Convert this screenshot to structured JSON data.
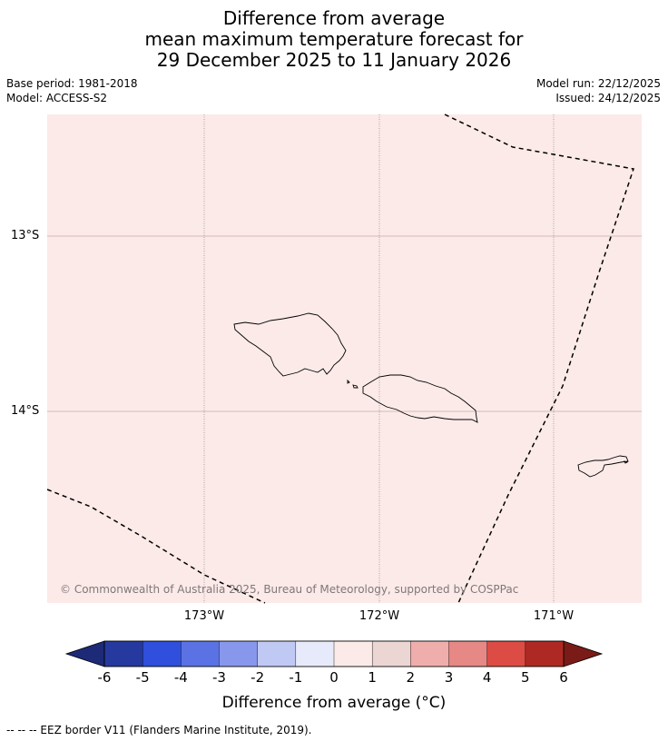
{
  "title": {
    "line1": "Difference from average",
    "line2": "mean maximum temperature forecast for",
    "line3": "29 December 2025 to 11 January 2026"
  },
  "meta": {
    "base_period": "Base period: 1981-2018",
    "model": "Model: ACCESS-S2",
    "model_run": "Model run: 22/12/2025",
    "issued": "Issued: 24/12/2025"
  },
  "map": {
    "background_color": "#fbeae8",
    "lat_labels": [
      "13°S",
      "14°S"
    ],
    "lon_labels": [
      "173°W",
      "172°W",
      "171°W"
    ],
    "copyright": "© Commonwealth of Australia 2025, Bureau of Meteorology, supported by COSPPac",
    "features": [
      "Savai'i",
      "Upolu",
      "Tutuila",
      "EEZ border"
    ]
  },
  "colorbar": {
    "ticks": [
      "-6",
      "-5",
      "-4",
      "-3",
      "-2",
      "-1",
      "0",
      "1",
      "2",
      "3",
      "4",
      "5",
      "6"
    ],
    "colors": [
      "#25399e",
      "#2f4fdc",
      "#5b72e4",
      "#8798ec",
      "#c0c8f4",
      "#e7eafb",
      "#fbeae8",
      "#ecd6d3",
      "#efaeab",
      "#e68885",
      "#dc4c45",
      "#ae2923"
    ],
    "under_color": "#1c2a78",
    "over_color": "#7a1b17",
    "label": "Difference from average (°C)"
  },
  "footer": "--  --  -- EEZ border V11 (Flanders Marine Institute, 2019)."
}
